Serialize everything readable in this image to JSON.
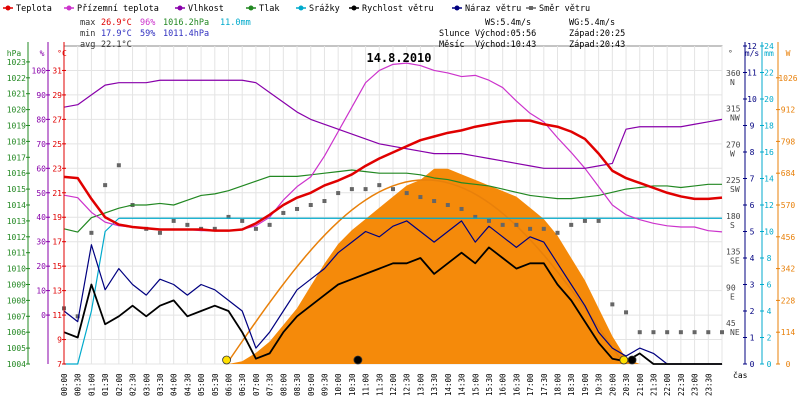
{
  "chart_data": {
    "type": "line",
    "title": "14.8.2010",
    "legend": [
      {
        "name": "Teplota",
        "color": "#e00000"
      },
      {
        "name": "Přízemní teplota",
        "color": "#cc33cc"
      },
      {
        "name": "Vlhkost",
        "color": "#8800aa"
      },
      {
        "name": "Tlak",
        "color": "#228822"
      },
      {
        "name": "Srážky",
        "color": "#00aacc"
      },
      {
        "name": "Rychlost větru",
        "color": "#000000"
      },
      {
        "name": "Náraz větru",
        "color": "#000080"
      },
      {
        "name": "Směr větru",
        "color": "#666666"
      }
    ],
    "stats": {
      "max_label": "max",
      "max_temp": "26.9°C",
      "max_hum": "96%",
      "max_press": "1016.2hPa",
      "rain_total": "11.0mm",
      "min_label": "min",
      "min_temp": "17.9°C",
      "min_hum": "59%",
      "min_press": "1011.4hPa",
      "avg_label": "avg",
      "avg_temp": "22.1°C",
      "ws": "WS:5.4m/s",
      "wg": "WG:5.4m/s",
      "sun_rise": "Slunce Východ:05:56",
      "sun_set": "Západ:20:25",
      "moon_rise": "Měsíc  Východ:10:43",
      "moon_set": "Západ:20:43"
    },
    "axes": {
      "hpa": {
        "label": "hPa",
        "ticks": [
          "1004",
          "1005",
          "1006",
          "1007",
          "1008",
          "1009",
          "1010",
          "1011",
          "1012",
          "1013",
          "1014",
          "1015",
          "1016",
          "1017",
          "1018",
          "1019",
          "1020",
          "1021",
          "1022",
          "1023"
        ],
        "range": [
          1004,
          1024
        ]
      },
      "percent": {
        "label": "%",
        "ticks": [
          "0",
          "10",
          "20",
          "30",
          "40",
          "50",
          "60",
          "70",
          "80",
          "90",
          "100"
        ]
      },
      "celsius": {
        "label": "°C",
        "ticks": [
          "7",
          "9",
          "11",
          "13",
          "15",
          "17",
          "19",
          "21",
          "23",
          "25",
          "27",
          "29",
          "31"
        ],
        "range": [
          7,
          33
        ]
      },
      "direction": {
        "label": "°",
        "ticks": [
          {
            "deg": "45",
            "dir": "NE"
          },
          {
            "deg": "90",
            "dir": "E"
          },
          {
            "deg": "135",
            "dir": "SE"
          },
          {
            "deg": "180",
            "dir": "S"
          },
          {
            "deg": "225",
            "dir": "SW"
          },
          {
            "deg": "270",
            "dir": "W"
          },
          {
            "deg": "315",
            "dir": "NW"
          },
          {
            "deg": "360",
            "dir": "N"
          }
        ]
      },
      "wind": {
        "label": "m/s",
        "ticks": [
          "0",
          "1",
          "2",
          "3",
          "4",
          "5",
          "6",
          "7",
          "8",
          "9",
          "10",
          "11",
          "12"
        ],
        "range": [
          0,
          12
        ]
      },
      "rain": {
        "label": "mm",
        "ticks": [
          "0",
          "2",
          "4",
          "6",
          "8",
          "10",
          "12",
          "14",
          "16",
          "18",
          "20",
          "22",
          "24"
        ],
        "range": [
          0,
          24
        ]
      },
      "solar": {
        "label": "W",
        "ticks": [
          "0",
          "114",
          "228",
          "342",
          "456",
          "570",
          "684",
          "798",
          "912",
          "1026"
        ],
        "range": [
          0,
          1140
        ]
      },
      "time": {
        "label": "čas",
        "ticks": [
          "00:00",
          "00:30",
          "01:00",
          "01:30",
          "02:00",
          "02:30",
          "03:00",
          "03:30",
          "04:00",
          "04:30",
          "05:00",
          "05:30",
          "06:00",
          "06:30",
          "07:00",
          "07:30",
          "08:00",
          "08:30",
          "09:00",
          "09:30",
          "10:00",
          "10:30",
          "11:00",
          "11:30",
          "12:00",
          "12:30",
          "13:00",
          "13:30",
          "14:00",
          "14:30",
          "15:00",
          "15:30",
          "16:00",
          "16:30",
          "17:00",
          "17:30",
          "18:00",
          "18:30",
          "19:00",
          "19:30",
          "20:00",
          "20:30",
          "21:00",
          "21:30",
          "22:00",
          "22:30",
          "23:00",
          "23:30"
        ]
      }
    },
    "hours": [
      0,
      0.5,
      1,
      1.5,
      2,
      2.5,
      3,
      3.5,
      4,
      4.5,
      5,
      5.5,
      6,
      6.5,
      7,
      7.5,
      8,
      8.5,
      9,
      9.5,
      10,
      10.5,
      11,
      11.5,
      12,
      12.5,
      13,
      13.5,
      14,
      14.5,
      15,
      15.5,
      16,
      16.5,
      17,
      17.5,
      18,
      18.5,
      19,
      19.5,
      20,
      20.5,
      21,
      21.5,
      22,
      22.5,
      23,
      23.5,
      24
    ],
    "series": [
      {
        "name": "Teplota",
        "unit": "°C",
        "values": [
          22.3,
          22.2,
          20.5,
          19.0,
          18.4,
          18.2,
          18.1,
          18.0,
          18.0,
          18.0,
          18.0,
          17.9,
          17.9,
          18.0,
          18.5,
          19.2,
          20.0,
          20.6,
          21.0,
          21.6,
          22.0,
          22.5,
          23.2,
          23.8,
          24.3,
          24.8,
          25.3,
          25.6,
          25.9,
          26.1,
          26.4,
          26.6,
          26.8,
          26.9,
          26.9,
          26.6,
          26.4,
          26.0,
          25.4,
          24.2,
          22.8,
          22.2,
          21.8,
          21.4,
          21.0,
          20.7,
          20.5,
          20.5,
          20.6
        ]
      },
      {
        "name": "Přízemní teplota",
        "unit": "°C",
        "values": [
          20.8,
          20.6,
          19.4,
          18.6,
          18.3,
          18.2,
          18.1,
          18.0,
          18.0,
          18.0,
          17.9,
          17.9,
          17.9,
          18.0,
          18.3,
          19.0,
          20.4,
          21.5,
          22.3,
          24.0,
          26.0,
          28.0,
          30.0,
          31.0,
          31.5,
          31.6,
          31.4,
          31.0,
          30.8,
          30.5,
          30.6,
          30.2,
          29.6,
          28.5,
          27.5,
          26.8,
          25.5,
          24.3,
          23.0,
          21.5,
          20.0,
          19.2,
          18.8,
          18.5,
          18.3,
          18.2,
          18.2,
          17.9,
          17.8
        ]
      },
      {
        "name": "Vlhkost",
        "unit": "%",
        "values": [
          85,
          86,
          90,
          94,
          95,
          95,
          95,
          96,
          96,
          96,
          96,
          96,
          96,
          96,
          95,
          91,
          87,
          83,
          80,
          78,
          76,
          74,
          72,
          70,
          69,
          68,
          67,
          66,
          66,
          66,
          65,
          64,
          63,
          62,
          61,
          60,
          60,
          60,
          60,
          61,
          62,
          76,
          77,
          77,
          77,
          77,
          78,
          79,
          80
        ]
      },
      {
        "name": "Tlak",
        "unit": "hPa",
        "values": [
          1012.5,
          1012.3,
          1013.2,
          1013.5,
          1013.8,
          1014.0,
          1014.0,
          1014.1,
          1014.0,
          1014.3,
          1014.6,
          1014.7,
          1014.9,
          1015.2,
          1015.5,
          1015.8,
          1015.8,
          1015.8,
          1015.9,
          1016.0,
          1016.1,
          1016.2,
          1016.1,
          1016.0,
          1016.0,
          1016.0,
          1015.9,
          1015.7,
          1015.6,
          1015.4,
          1015.3,
          1015.2,
          1015.0,
          1014.8,
          1014.6,
          1014.5,
          1014.4,
          1014.4,
          1014.5,
          1014.6,
          1014.8,
          1015.0,
          1015.1,
          1015.2,
          1015.2,
          1015.1,
          1015.2,
          1015.3,
          1015.3
        ]
      },
      {
        "name": "Srážky",
        "unit": "mm",
        "values": [
          0,
          0,
          4,
          10,
          11,
          11,
          11,
          11,
          11,
          11,
          11,
          11,
          11,
          11,
          11,
          11,
          11,
          11,
          11,
          11,
          11,
          11,
          11,
          11,
          11,
          11,
          11,
          11,
          11,
          11,
          11,
          11,
          11,
          11,
          11,
          11,
          11,
          11,
          11,
          11,
          11,
          11,
          11,
          11,
          11,
          11,
          11,
          11,
          11
        ]
      },
      {
        "name": "Rychlost větru",
        "unit": "m/s",
        "values": [
          1.2,
          1.0,
          3.0,
          1.5,
          1.8,
          2.2,
          1.8,
          2.2,
          2.4,
          1.8,
          2.0,
          2.2,
          2.0,
          1.2,
          0.2,
          0.4,
          1.2,
          1.8,
          2.2,
          2.6,
          3.0,
          3.2,
          3.4,
          3.6,
          3.8,
          3.8,
          4.0,
          3.4,
          3.8,
          4.2,
          3.8,
          4.4,
          4.0,
          3.6,
          3.8,
          3.8,
          3.0,
          2.4,
          1.6,
          0.8,
          0.2,
          0.1,
          0.4,
          0,
          0,
          0,
          0,
          0,
          0
        ]
      },
      {
        "name": "Náraz větru",
        "unit": "m/s",
        "values": [
          2.0,
          1.6,
          4.5,
          2.8,
          3.6,
          3.0,
          2.6,
          3.2,
          3.0,
          2.6,
          3.0,
          2.8,
          2.4,
          2.0,
          0.6,
          1.2,
          2.0,
          2.8,
          3.2,
          3.6,
          4.2,
          4.6,
          5.0,
          4.8,
          5.2,
          5.4,
          5.0,
          4.6,
          5.0,
          5.4,
          4.6,
          5.2,
          4.8,
          4.4,
          4.8,
          4.6,
          3.8,
          3.0,
          2.2,
          1.2,
          0.6,
          0.3,
          0.6,
          0.4,
          0,
          0,
          0,
          0,
          0
        ]
      }
    ],
    "wind_direction": {
      "unit": "deg",
      "values": [
        70,
        60,
        165,
        225,
        250,
        200,
        170,
        165,
        180,
        175,
        170,
        170,
        185,
        180,
        170,
        175,
        190,
        195,
        200,
        205,
        215,
        220,
        220,
        225,
        220,
        215,
        210,
        205,
        200,
        195,
        185,
        180,
        175,
        175,
        170,
        170,
        165,
        175,
        180,
        180,
        75,
        65,
        40,
        40,
        40,
        40,
        40,
        40,
        40
      ]
    },
    "solar_radiation": {
      "unit": "W/m2",
      "values": [
        0,
        0,
        0,
        0,
        0,
        0,
        0,
        0,
        0,
        0,
        0,
        0,
        0,
        10,
        40,
        80,
        140,
        200,
        280,
        360,
        430,
        480,
        520,
        560,
        600,
        640,
        660,
        700,
        700,
        680,
        660,
        640,
        620,
        600,
        560,
        520,
        460,
        380,
        300,
        200,
        100,
        20,
        0,
        0,
        0,
        0,
        0,
        0,
        0
      ]
    },
    "sun_curve_max": 660,
    "markers": {
      "sunrise_hour": 5.93,
      "sunset_hour": 20.42,
      "moonrise_hour": 10.72,
      "moonset_hour": 20.72
    }
  }
}
